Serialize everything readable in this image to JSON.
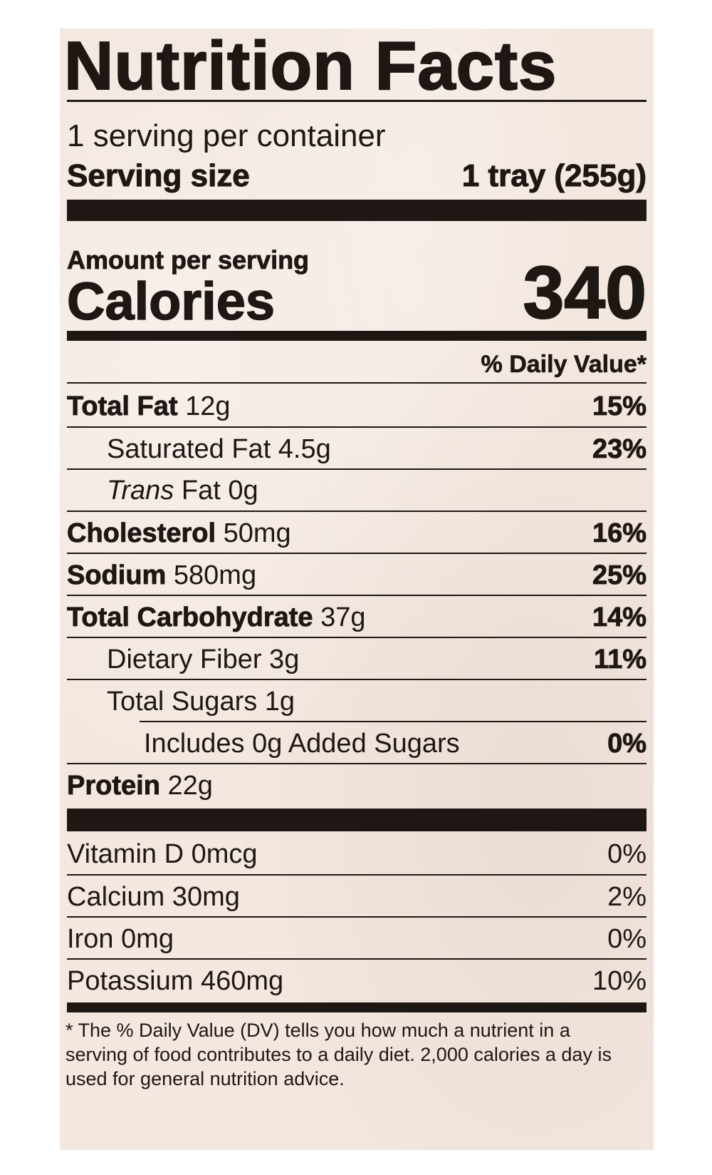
{
  "title": "Nutrition Facts",
  "servings_per_container": "1 serving per container",
  "serving_size_label": "Serving size",
  "serving_size_value": "1 tray (255g)",
  "amount_per_serving": "Amount per serving",
  "calories_label": "Calories",
  "calories_value": "340",
  "daily_value_header": "% Daily Value*",
  "nutrients": [
    {
      "name": "Total Fat",
      "amount": " 12g",
      "dv": "15%"
    },
    {
      "name": "Saturated Fat 4.5g",
      "amount": "",
      "dv": "23%"
    },
    {
      "name": "Trans",
      "amount": " Fat 0g",
      "dv": ""
    },
    {
      "name": "Cholesterol",
      "amount": " 50mg",
      "dv": "16%"
    },
    {
      "name": "Sodium",
      "amount": " 580mg",
      "dv": "25%"
    },
    {
      "name": "Total Carbohydrate",
      "amount": " 37g",
      "dv": "14%"
    },
    {
      "name": "Dietary Fiber 3g",
      "amount": "",
      "dv": "11%"
    },
    {
      "name": "Total Sugars 1g",
      "amount": "",
      "dv": ""
    },
    {
      "name": "Includes 0g Added Sugars",
      "amount": "",
      "dv": "0%"
    },
    {
      "name": "Protein",
      "amount": " 22g",
      "dv": ""
    }
  ],
  "vitamins": [
    {
      "name": "Vitamin D 0mcg",
      "dv": "0%"
    },
    {
      "name": "Calcium 30mg",
      "dv": "2%"
    },
    {
      "name": "Iron 0mg",
      "dv": "0%"
    },
    {
      "name": "Potassium 460mg",
      "dv": "10%"
    }
  ],
  "footnote": "* The % Daily Value (DV) tells you how much a nutrient in a serving of food contributes to a daily diet. 2,000 calories a day is used for general nutrition advice."
}
